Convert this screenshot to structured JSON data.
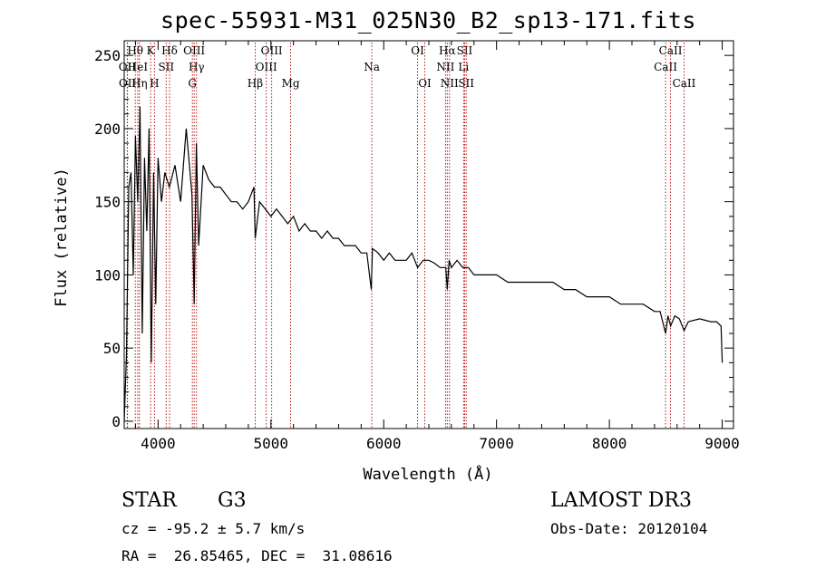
{
  "chart_data": {
    "type": "line",
    "title": "spec-55931-M31_025N30_B2_sp13-171.fits",
    "xlabel": "Wavelength (Å)",
    "ylabel": "Flux (relative)",
    "xlim": [
      3700,
      9100
    ],
    "ylim": [
      -5,
      260
    ],
    "xticks": [
      4000,
      5000,
      6000,
      7000,
      8000,
      9000
    ],
    "yticks": [
      0,
      50,
      100,
      150,
      200,
      250
    ],
    "series": [
      {
        "name": "flux",
        "x": [
          3700,
          3720,
          3740,
          3760,
          3780,
          3800,
          3820,
          3840,
          3860,
          3880,
          3900,
          3920,
          3940,
          3960,
          3980,
          4000,
          4030,
          4060,
          4100,
          4150,
          4200,
          4250,
          4300,
          4320,
          4340,
          4360,
          4400,
          4450,
          4500,
          4550,
          4600,
          4650,
          4700,
          4750,
          4800,
          4850,
          4861,
          4900,
          4950,
          5000,
          5050,
          5100,
          5150,
          5200,
          5250,
          5300,
          5350,
          5400,
          5450,
          5500,
          5550,
          5600,
          5650,
          5700,
          5750,
          5800,
          5850,
          5890,
          5900,
          5950,
          6000,
          6050,
          6100,
          6150,
          6200,
          6250,
          6300,
          6350,
          6400,
          6450,
          6500,
          6550,
          6563,
          6580,
          6600,
          6650,
          6700,
          6750,
          6800,
          6850,
          6900,
          6950,
          7000,
          7100,
          7200,
          7300,
          7400,
          7500,
          7600,
          7700,
          7800,
          7900,
          8000,
          8100,
          8200,
          8300,
          8400,
          8450,
          8498,
          8520,
          8542,
          8580,
          8620,
          8662,
          8700,
          8800,
          8900,
          8950,
          8990,
          9000
        ],
        "values": [
          0,
          45,
          160,
          170,
          100,
          195,
          150,
          215,
          60,
          180,
          130,
          200,
          40,
          170,
          80,
          180,
          150,
          170,
          160,
          175,
          150,
          200,
          155,
          80,
          190,
          120,
          175,
          165,
          160,
          160,
          155,
          150,
          150,
          145,
          150,
          160,
          125,
          150,
          145,
          140,
          145,
          140,
          135,
          140,
          130,
          135,
          130,
          130,
          125,
          130,
          125,
          125,
          120,
          120,
          120,
          115,
          115,
          90,
          118,
          115,
          110,
          115,
          110,
          110,
          110,
          115,
          105,
          110,
          110,
          108,
          105,
          105,
          90,
          110,
          105,
          110,
          105,
          105,
          100,
          100,
          100,
          100,
          100,
          95,
          95,
          95,
          95,
          95,
          90,
          90,
          85,
          85,
          85,
          80,
          80,
          80,
          75,
          75,
          60,
          72,
          65,
          72,
          70,
          62,
          68,
          70,
          68,
          68,
          65,
          40
        ]
      }
    ],
    "lines": [
      {
        "name": "OII",
        "wave": 3727,
        "row": 1
      },
      {
        "name": "OII",
        "wave": 3729,
        "row": 2
      },
      {
        "name": "Hθ",
        "wave": 3798,
        "row": 0
      },
      {
        "name": "HeI",
        "wave": 3820,
        "row": 1
      },
      {
        "name": "Hη",
        "wave": 3835,
        "row": 2
      },
      {
        "name": "K",
        "wave": 3934,
        "row": 0
      },
      {
        "name": "H",
        "wave": 3968,
        "row": 2
      },
      {
        "name": "SII",
        "wave": 4072,
        "row": 1
      },
      {
        "name": "Hδ",
        "wave": 4102,
        "row": 0
      },
      {
        "name": "OIII",
        "wave": 4320,
        "row": 0
      },
      {
        "name": "G",
        "wave": 4304,
        "row": 2
      },
      {
        "name": "Hγ",
        "wave": 4341,
        "row": 1
      },
      {
        "name": "Hβ",
        "wave": 4861,
        "row": 2
      },
      {
        "name": "OIII",
        "wave": 4959,
        "row": 1
      },
      {
        "name": "OIII",
        "wave": 5007,
        "row": 0
      },
      {
        "name": "Mg",
        "wave": 5175,
        "row": 2
      },
      {
        "name": "Na",
        "wave": 5894,
        "row": 1
      },
      {
        "name": "OI",
        "wave": 6300,
        "row": 0
      },
      {
        "name": "OI",
        "wave": 6364,
        "row": 2
      },
      {
        "name": "NII",
        "wave": 6548,
        "row": 1
      },
      {
        "name": "Hα",
        "wave": 6563,
        "row": 0
      },
      {
        "name": "NII",
        "wave": 6583,
        "row": 2
      },
      {
        "name": "SII",
        "wave": 6717,
        "row": 0
      },
      {
        "name": "Li",
        "wave": 6708,
        "row": 1
      },
      {
        "name": "SII",
        "wave": 6731,
        "row": 2
      },
      {
        "name": "CaII",
        "wave": 8498,
        "row": 1
      },
      {
        "name": "CaII",
        "wave": 8542,
        "row": 0
      },
      {
        "name": "CaII",
        "wave": 8662,
        "row": 2
      }
    ]
  },
  "info": {
    "class": "STAR",
    "subclass": "G3",
    "survey": "LAMOST DR3",
    "cz": "cz = -95.2 ± 5.7 km/s",
    "obs_date": "Obs-Date: 20120104",
    "coords": "RA =  26.85465, DEC =  31.08616"
  }
}
